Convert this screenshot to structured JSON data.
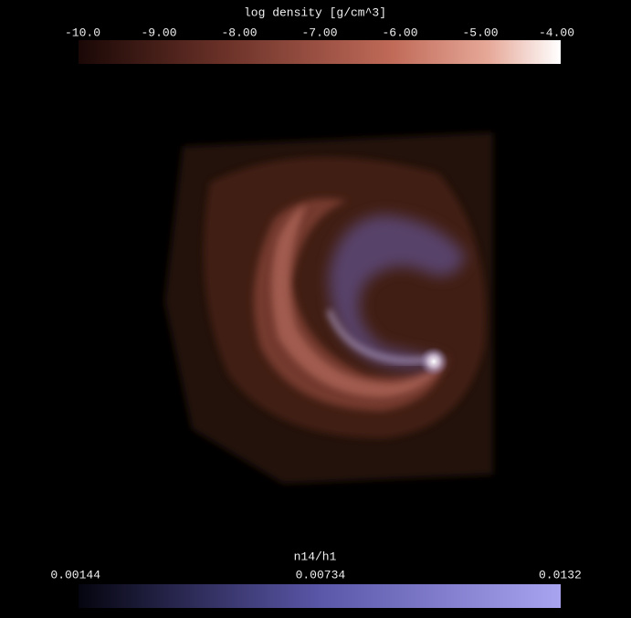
{
  "colorbars": [
    {
      "title": "log density [g/cm^3]",
      "range": [
        -10,
        -4
      ],
      "ticks": [
        {
          "value": -10,
          "label": "-10.0"
        },
        {
          "value": -9,
          "label": "-9.00"
        },
        {
          "value": -8,
          "label": "-8.00"
        },
        {
          "value": -7,
          "label": "-7.00"
        },
        {
          "value": -6,
          "label": "-6.00"
        },
        {
          "value": -5,
          "label": "-5.00"
        },
        {
          "value": -4,
          "label": "-4.00"
        }
      ]
    },
    {
      "title": "n14/h1",
      "range": [
        0.00144,
        0.0132
      ],
      "ticks": [
        0.00144,
        0.00734,
        0.0132
      ]
    }
  ]
}
